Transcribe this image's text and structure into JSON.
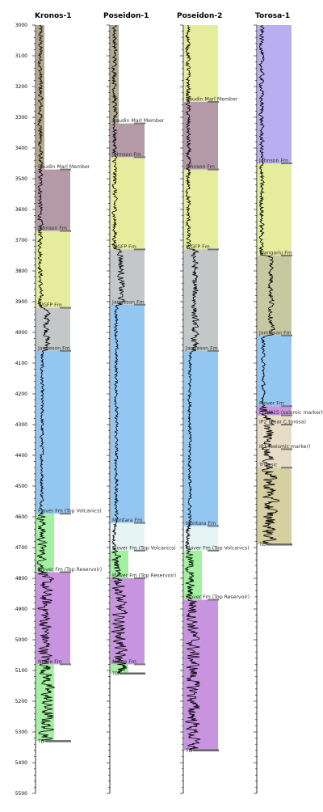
{
  "chart_data": {
    "type": "well-correlation",
    "depth_axis": {
      "range": [
        3000,
        5500
      ],
      "tick_step": 100,
      "ticks": [
        "3000",
        "3100",
        "3200",
        "3300",
        "3400",
        "3500",
        "3600",
        "3700",
        "3800",
        "3900",
        "4000",
        "4100",
        "4200",
        "4300",
        "4400",
        "4500",
        "4600",
        "4700",
        "4800",
        "4900",
        "5000",
        "5100",
        "5200",
        "5300",
        "5400",
        "5500"
      ]
    },
    "formation_colors": {
      "undiff": "#b2a98e",
      "baudin": "#b49aa6",
      "johnson": "#e5ec9c",
      "wgfp": "#c3c7c8",
      "jamieson": "#93c6f0",
      "montara": "#e6f4f4",
      "plover_volc": "#a3f0a0",
      "plover_res": "#c894e0",
      "nome": "#a3f0a0",
      "wangarlu": "#c6c9a0",
      "lslope": "#e9dcc6",
      "triassic": "#d6cfa0",
      "torosa_top": "#b9aef0"
    },
    "wells": [
      {
        "name": "Kronos-1",
        "intervals": [
          {
            "top": 3000,
            "base": 3470,
            "fm": "undiff",
            "label": ""
          },
          {
            "top": 3470,
            "base": 3670,
            "fm": "baudin",
            "label": "Baudin Marl Member"
          },
          {
            "top": 3670,
            "base": 3920,
            "fm": "johnson",
            "label": "Johnson Fm"
          },
          {
            "top": 3920,
            "base": 4060,
            "fm": "wgfp",
            "label": "WGFP Fm"
          },
          {
            "top": 4060,
            "base": 4590,
            "fm": "jamieson",
            "label": "Jamieson Fm"
          },
          {
            "top": 4590,
            "base": 4780,
            "fm": "plover_volc",
            "label": "Plover Fm (Top Volcanics)"
          },
          {
            "top": 4780,
            "base": 5080,
            "fm": "plover_res",
            "label": "Plover Fm (Top Reservoir)"
          },
          {
            "top": 5080,
            "base": 5330,
            "fm": "nome",
            "label": "Nome Fm"
          }
        ],
        "td": 5330,
        "td_label": "TD"
      },
      {
        "name": "Poseidon-1",
        "intervals": [
          {
            "top": 3000,
            "base": 3320,
            "fm": "undiff",
            "label": ""
          },
          {
            "top": 3320,
            "base": 3430,
            "fm": "baudin",
            "label": "Baudin Marl Member"
          },
          {
            "top": 3430,
            "base": 3730,
            "fm": "johnson",
            "label": "Johnson Fm"
          },
          {
            "top": 3730,
            "base": 3910,
            "fm": "wgfp",
            "label": "WGFP Fm"
          },
          {
            "top": 3910,
            "base": 4620,
            "fm": "jamieson",
            "label": "Jamieson Fm"
          },
          {
            "top": 4620,
            "base": 4710,
            "fm": "montara",
            "label": "Montara Fm"
          },
          {
            "top": 4710,
            "base": 4800,
            "fm": "plover_volc",
            "label": "Plover Fm (Top Volcanics)"
          },
          {
            "top": 4800,
            "base": 5080,
            "fm": "plover_res",
            "label": "Plover Fm (Top Reservoir)"
          },
          {
            "top": 5080,
            "base": 5110,
            "fm": "nome",
            "label": "Nome Fm"
          }
        ],
        "td": 5110,
        "td_label": "TD"
      },
      {
        "name": "Poseidon-2",
        "intervals": [
          {
            "top": 3000,
            "base": 3250,
            "fm": "johnson",
            "label": ""
          },
          {
            "top": 3250,
            "base": 3470,
            "fm": "baudin",
            "label": "Baudin Marl Member"
          },
          {
            "top": 3470,
            "base": 3730,
            "fm": "johnson",
            "label": "Johnson Fm"
          },
          {
            "top": 3730,
            "base": 4060,
            "fm": "wgfp",
            "label": "WGFP Fm"
          },
          {
            "top": 4060,
            "base": 4630,
            "fm": "jamieson",
            "label": "Jamieson Fm"
          },
          {
            "top": 4630,
            "base": 4710,
            "fm": "montara",
            "label": "Montara Fm"
          },
          {
            "top": 4710,
            "base": 4870,
            "fm": "plover_volc",
            "label": "Plover Fm (Top Volcanics)"
          },
          {
            "top": 4870,
            "base": 5360,
            "fm": "plover_res",
            "label": "Plover Fm (Top Reservoir)"
          }
        ],
        "td": 5360,
        "td_label": "TD"
      },
      {
        "name": "Torosa-1",
        "intervals": [
          {
            "top": 3000,
            "base": 3450,
            "fm": "torosa_top",
            "label": ""
          },
          {
            "top": 3450,
            "base": 3750,
            "fm": "johnson",
            "label": "Johnson Fm"
          },
          {
            "top": 3750,
            "base": 4010,
            "fm": "wangarlu",
            "label": "Wangarlu Fm"
          },
          {
            "top": 4010,
            "base": 4240,
            "fm": "jamieson",
            "label": "Jamieson Fm"
          },
          {
            "top": 4240,
            "base": 4270,
            "fm": "plover_res",
            "label": "Plover Fm"
          },
          {
            "top": 4270,
            "base": 4300,
            "fm": "lslope",
            "label": "LLDM15 (seismic marker)"
          },
          {
            "top": 4300,
            "base": 4380,
            "fm": "lslope",
            "label": "IP2 (near C.torosa)"
          },
          {
            "top": 4380,
            "base": 4440,
            "fm": "lslope",
            "label": "IP1 (seismic marker)"
          },
          {
            "top": 4440,
            "base": 4690,
            "fm": "triassic",
            "label": "Triassic"
          }
        ],
        "td": 4690,
        "td_label": "TD"
      }
    ]
  }
}
